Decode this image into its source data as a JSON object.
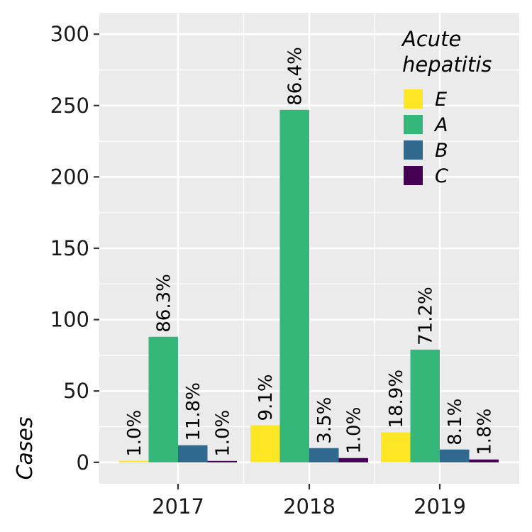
{
  "chart_data": {
    "type": "bar",
    "categories": [
      "2017",
      "2018",
      "2019"
    ],
    "ylabel": "Cases",
    "xlabel": "",
    "ylim": [
      -15,
      315
    ],
    "y_ticks": [
      0,
      50,
      100,
      150,
      200,
      250,
      300
    ],
    "legend": {
      "title_lines": [
        "Acute",
        "hepatitis"
      ],
      "position": "top-right"
    },
    "series": [
      {
        "name": "E",
        "color": "#FDE725",
        "values": [
          1,
          26,
          21
        ],
        "labels": [
          "1.0%",
          "9.1%",
          "18.9%"
        ]
      },
      {
        "name": "A",
        "color": "#35B779",
        "values": [
          88,
          247,
          79
        ],
        "labels": [
          "86.3%",
          "86.4%",
          "71.2%"
        ]
      },
      {
        "name": "B",
        "color": "#31688E",
        "values": [
          12,
          10,
          9
        ],
        "labels": [
          "11.8%",
          "3.5%",
          "8.1%"
        ]
      },
      {
        "name": "C",
        "color": "#440154",
        "values": [
          1,
          3,
          2
        ],
        "labels": [
          "1.0%",
          "1.0%",
          "1.8%"
        ]
      }
    ],
    "grid": true,
    "panel_background": "#EBEBEB"
  }
}
